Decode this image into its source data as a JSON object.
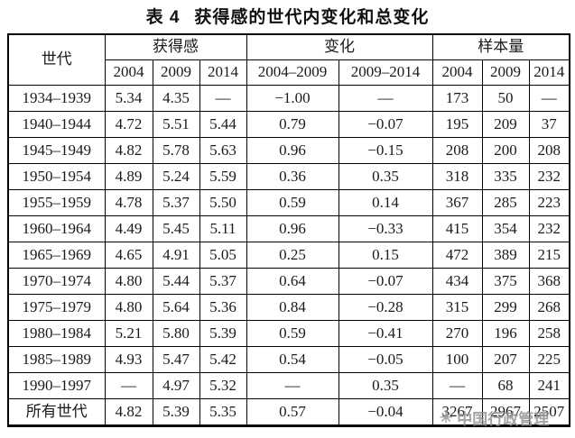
{
  "title": {
    "label": "表 4",
    "text": "获得感的世代内变化和总变化"
  },
  "table": {
    "corner_header": "世代",
    "groups": [
      {
        "label": "获得感",
        "sub": [
          "2004",
          "2009",
          "2014"
        ]
      },
      {
        "label": "变化",
        "sub": [
          "2004–2009",
          "2009–2014"
        ]
      },
      {
        "label": "样本量",
        "sub": [
          "2004",
          "2009",
          "2014"
        ]
      }
    ],
    "rows": [
      {
        "generation": "1934–1939",
        "values": [
          "5.34",
          "4.35",
          "—",
          "−1.00",
          "—",
          "173",
          "50",
          "—"
        ]
      },
      {
        "generation": "1940–1944",
        "values": [
          "4.72",
          "5.51",
          "5.44",
          "0.79",
          "−0.07",
          "195",
          "209",
          "37"
        ]
      },
      {
        "generation": "1945–1949",
        "values": [
          "4.82",
          "5.78",
          "5.63",
          "0.96",
          "−0.15",
          "208",
          "200",
          "208"
        ]
      },
      {
        "generation": "1950–1954",
        "values": [
          "4.89",
          "5.24",
          "5.59",
          "0.36",
          "0.35",
          "318",
          "335",
          "232"
        ]
      },
      {
        "generation": "1955–1959",
        "values": [
          "4.78",
          "5.37",
          "5.50",
          "0.59",
          "0.14",
          "367",
          "285",
          "223"
        ]
      },
      {
        "generation": "1960–1964",
        "values": [
          "4.49",
          "5.45",
          "5.11",
          "0.96",
          "−0.33",
          "415",
          "354",
          "232"
        ]
      },
      {
        "generation": "1965–1969",
        "values": [
          "4.65",
          "4.91",
          "5.05",
          "0.25",
          "0.15",
          "472",
          "389",
          "215"
        ]
      },
      {
        "generation": "1970–1974",
        "values": [
          "4.80",
          "5.44",
          "5.37",
          "0.64",
          "−0.07",
          "434",
          "375",
          "368"
        ]
      },
      {
        "generation": "1975–1979",
        "values": [
          "4.80",
          "5.64",
          "5.36",
          "0.84",
          "−0.28",
          "315",
          "299",
          "268"
        ]
      },
      {
        "generation": "1980–1984",
        "values": [
          "5.21",
          "5.80",
          "5.39",
          "0.59",
          "−0.41",
          "270",
          "196",
          "258"
        ]
      },
      {
        "generation": "1985–1989",
        "values": [
          "4.93",
          "5.47",
          "5.42",
          "0.54",
          "−0.05",
          "100",
          "207",
          "225"
        ]
      },
      {
        "generation": "1990–1997",
        "values": [
          "—",
          "4.97",
          "5.32",
          "—",
          "0.35",
          "—",
          "68",
          "241"
        ]
      },
      {
        "generation": "所有世代",
        "values": [
          "4.82",
          "5.39",
          "5.35",
          "0.57",
          "−0.04",
          "3267",
          "2967",
          "2507"
        ]
      }
    ]
  },
  "watermark": {
    "logo": "✳",
    "text": "中国行政管理",
    "color": "#8f8f8f"
  }
}
